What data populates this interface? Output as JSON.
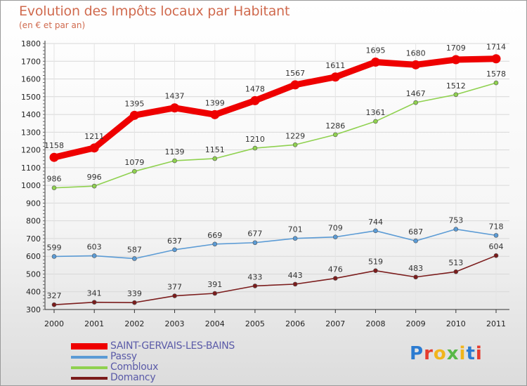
{
  "chart_data": {
    "type": "line",
    "title": "Evolution des Impôts locaux par Habitant",
    "subtitle": "(en € et par an)",
    "xlabel": "",
    "ylabel": "",
    "ylim": [
      300,
      1800
    ],
    "y_ticks": [
      300,
      400,
      500,
      600,
      700,
      800,
      900,
      1000,
      1100,
      1200,
      1300,
      1400,
      1500,
      1600,
      1700,
      1800
    ],
    "grid": true,
    "legend_position": "bottom-left",
    "categories": [
      "2000",
      "2001",
      "2002",
      "2003",
      "2004",
      "2005",
      "2006",
      "2007",
      "2008",
      "2009",
      "2010",
      "2011"
    ],
    "series": [
      {
        "name": "SAINT-GERVAIS-LES-BAINS",
        "color": "#ee0000",
        "values": [
          1158,
          1211,
          1395,
          1437,
          1399,
          1478,
          1567,
          1611,
          1695,
          1680,
          1709,
          1714
        ]
      },
      {
        "name": "Passy",
        "color": "#5b9bd5",
        "values": [
          599,
          603,
          587,
          637,
          669,
          677,
          701,
          709,
          744,
          687,
          753,
          718
        ]
      },
      {
        "name": "Combloux",
        "color": "#8fd14f",
        "values": [
          986,
          996,
          1079,
          1139,
          1151,
          1210,
          1229,
          1286,
          1361,
          1467,
          1512,
          1578
        ]
      },
      {
        "name": "Domancy",
        "color": "#7b1c1c",
        "values": [
          327,
          341,
          339,
          377,
          391,
          433,
          443,
          476,
          519,
          483,
          513,
          604
        ]
      }
    ]
  },
  "logo": {
    "text": "Proxiti",
    "letter_colors": [
      "#2b7bd1",
      "#e53c2e",
      "#f1b51c",
      "#57b847",
      "#f1b51c",
      "#2b7bd1",
      "#e53c2e"
    ]
  }
}
